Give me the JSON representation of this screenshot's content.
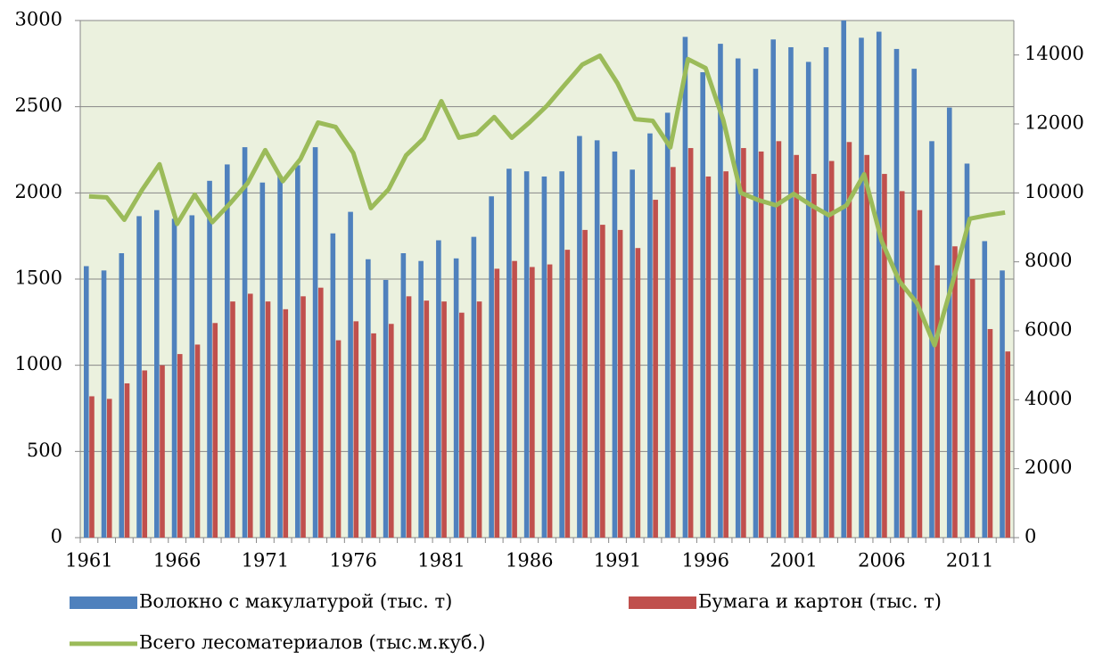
{
  "chart_data": {
    "type": "bar",
    "categories": [
      "1961",
      null,
      null,
      null,
      null,
      "1966",
      null,
      null,
      null,
      null,
      "1971",
      null,
      null,
      null,
      null,
      "1976",
      null,
      null,
      null,
      null,
      "1981",
      null,
      null,
      null,
      null,
      "1986",
      null,
      null,
      null,
      null,
      "1991",
      null,
      null,
      null,
      null,
      "1996",
      null,
      null,
      null,
      null,
      "2001",
      null,
      null,
      null,
      null,
      "2006",
      null,
      null,
      null,
      null,
      "2011",
      null,
      null
    ],
    "series": [
      {
        "name": "Волокно с макулатурой (тыс. т)",
        "type": "bar",
        "color": "#4f81bd",
        "values": [
          1575,
          1550,
          1650,
          1865,
          1900,
          1850,
          1870,
          2070,
          2165,
          2265,
          2060,
          2100,
          2160,
          2265,
          1765,
          1890,
          1615,
          1495,
          1650,
          1605,
          1725,
          1620,
          1745,
          1980,
          2140,
          2125,
          2095,
          2125,
          2330,
          2305,
          2240,
          2135,
          2345,
          2465,
          2905,
          2700,
          2865,
          2780,
          2720,
          2890,
          2845,
          2760,
          2845,
          3000,
          2900,
          2935,
          2835,
          2720,
          2300,
          2495,
          2170,
          1720,
          1550
        ]
      },
      {
        "name": "Бумага и картон (тыс. т)",
        "type": "bar",
        "color": "#c0504d",
        "values": [
          820,
          805,
          895,
          970,
          1000,
          1065,
          1120,
          1245,
          1370,
          1415,
          1370,
          1325,
          1400,
          1450,
          1145,
          1255,
          1185,
          1240,
          1400,
          1375,
          1370,
          1305,
          1370,
          1560,
          1605,
          1570,
          1585,
          1670,
          1785,
          1815,
          1785,
          1680,
          1960,
          2150,
          2260,
          2095,
          2125,
          2260,
          2240,
          2300,
          2220,
          2110,
          2185,
          2295,
          2220,
          2110,
          2010,
          1900,
          1580,
          1690,
          1500,
          1210,
          1080
        ]
      },
      {
        "name": "Всего лесоматериалов (тыс.м.куб.)",
        "type": "line",
        "axis": "y2",
        "color": "#9bbb59",
        "values": [
          9900,
          9870,
          9220,
          10080,
          10830,
          9100,
          9950,
          9150,
          9690,
          10280,
          11240,
          10340,
          10980,
          12040,
          11910,
          11160,
          9560,
          10100,
          11090,
          11580,
          12660,
          11600,
          11710,
          12200,
          11600,
          12040,
          12530,
          13130,
          13720,
          13980,
          13180,
          12140,
          12090,
          11320,
          13880,
          13620,
          12120,
          10000,
          9790,
          9640,
          9970,
          9640,
          9350,
          9640,
          10540,
          8600,
          7440,
          6800,
          5580,
          7360,
          9250,
          9350,
          9430
        ]
      }
    ],
    "ylim": [
      0,
      3000
    ],
    "yticks": [
      0,
      500,
      1000,
      1500,
      2000,
      2500,
      3000
    ],
    "y2lim": [
      0,
      15000
    ],
    "y2ticks": [
      0,
      2000,
      4000,
      6000,
      8000,
      10000,
      12000,
      14000
    ],
    "grid": true,
    "legend": "bottom"
  }
}
